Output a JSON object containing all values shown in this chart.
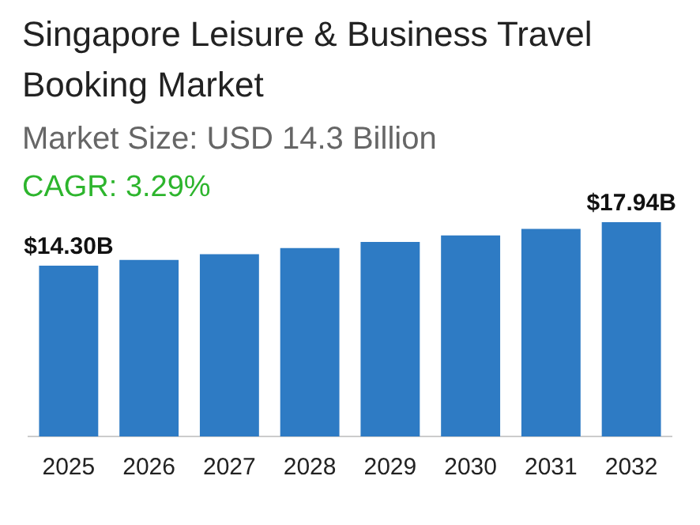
{
  "chart_data": {
    "type": "bar",
    "title": "Singapore Leisure & Business Travel Booking Market",
    "subtitle": "Market Size: USD 14.3 Billion",
    "annotations": [
      "CAGR: 3.29%"
    ],
    "categories": [
      "2025",
      "2026",
      "2027",
      "2028",
      "2029",
      "2030",
      "2031",
      "2032"
    ],
    "values": [
      14.3,
      14.77,
      15.26,
      15.76,
      16.28,
      16.82,
      17.37,
      17.94
    ],
    "value_labels": [
      "$14.30B",
      null,
      null,
      null,
      null,
      null,
      null,
      "$17.94B"
    ],
    "color": "#2e7bc4",
    "tick_labels": "x"
  }
}
